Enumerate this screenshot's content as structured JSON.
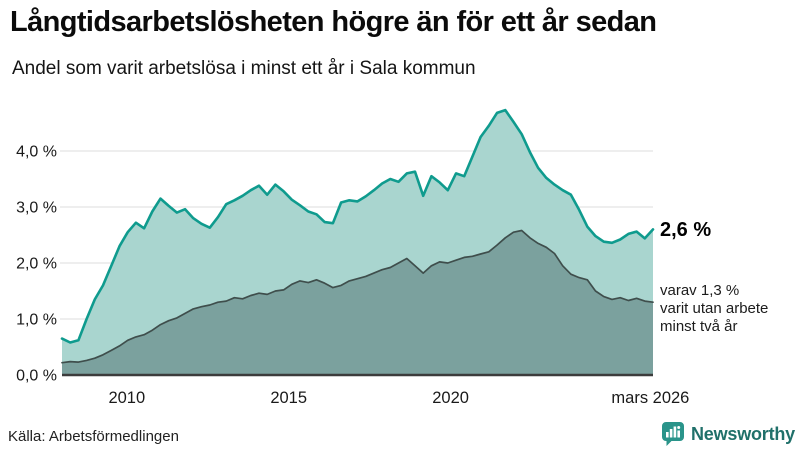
{
  "header": {
    "title": "Långtidsarbetslösheten högre än för ett år sedan",
    "subtitle": "Andel som varit arbetslösa i minst ett år i Sala kommun"
  },
  "annotations": {
    "end_value": "2,6 %",
    "sub_lines": [
      "varav 1,3 %",
      "varit utan arbete",
      "minst två år"
    ]
  },
  "footer": {
    "source": "Källa: Arbetsförmedlingen",
    "brand": "Newsworthy"
  },
  "colors": {
    "gridline": "#dcdcdc",
    "axis": "#3c3c3c",
    "tick_text": "#1a1a1a",
    "brand_icon": "#2a948a",
    "brand_text": "#20706a"
  },
  "chart_data": {
    "type": "area",
    "title": "Långtidsarbetslösheten högre än för ett år sedan",
    "subtitle": "Andel som varit arbetslösa i minst ett år i Sala kommun",
    "unit": "%",
    "x_range": {
      "start": 2008,
      "end": 2026.25
    },
    "ylim": [
      0,
      4.9
    ],
    "grid": true,
    "y_ticks": [
      {
        "label": "0,0 %",
        "value": 0
      },
      {
        "label": "1,0 %",
        "value": 1
      },
      {
        "label": "2,0 %",
        "value": 2
      },
      {
        "label": "3,0 %",
        "value": 3
      },
      {
        "label": "4,0 %",
        "value": 4
      }
    ],
    "x_ticks": [
      {
        "label": "2010",
        "year": 2010
      },
      {
        "label": "2015",
        "year": 2015
      },
      {
        "label": "2020",
        "year": 2020
      },
      {
        "label": "mars 2026",
        "year": 2026.17
      }
    ],
    "series": [
      {
        "name": "arbetslosa_minst_ett_ar",
        "end_label": "2,6 %",
        "fill": "#a9d5cf",
        "stroke": "#0f9b8e",
        "stroke_width": 2.6,
        "values": [
          0.65,
          0.58,
          0.62,
          1.0,
          1.35,
          1.6,
          1.95,
          2.3,
          2.55,
          2.72,
          2.62,
          2.92,
          3.15,
          3.02,
          2.9,
          2.96,
          2.8,
          2.7,
          2.63,
          2.82,
          3.05,
          3.12,
          3.2,
          3.3,
          3.38,
          3.22,
          3.4,
          3.28,
          3.13,
          3.03,
          2.92,
          2.87,
          2.73,
          2.71,
          3.08,
          3.12,
          3.1,
          3.19,
          3.3,
          3.42,
          3.5,
          3.45,
          3.6,
          3.63,
          3.2,
          3.55,
          3.44,
          3.3,
          3.6,
          3.55,
          3.9,
          4.25,
          4.45,
          4.68,
          4.73,
          4.52,
          4.3,
          3.98,
          3.7,
          3.52,
          3.4,
          3.3,
          3.22,
          2.95,
          2.65,
          2.48,
          2.38,
          2.36,
          2.42,
          2.52,
          2.56,
          2.44,
          2.6
        ]
      },
      {
        "name": "arbetslosa_minst_tva_ar",
        "end_label": "1,3 %",
        "fill": "#7ba19e",
        "stroke": "#3f4e4c",
        "stroke_width": 1.7,
        "values": [
          0.22,
          0.24,
          0.23,
          0.26,
          0.3,
          0.36,
          0.44,
          0.52,
          0.62,
          0.68,
          0.72,
          0.8,
          0.9,
          0.97,
          1.02,
          1.1,
          1.18,
          1.22,
          1.25,
          1.3,
          1.32,
          1.38,
          1.36,
          1.42,
          1.46,
          1.44,
          1.5,
          1.52,
          1.62,
          1.68,
          1.65,
          1.7,
          1.64,
          1.56,
          1.6,
          1.68,
          1.72,
          1.76,
          1.82,
          1.88,
          1.92,
          2.0,
          2.08,
          1.95,
          1.82,
          1.95,
          2.02,
          2.0,
          2.05,
          2.1,
          2.12,
          2.16,
          2.2,
          2.32,
          2.45,
          2.55,
          2.58,
          2.45,
          2.35,
          2.28,
          2.17,
          1.95,
          1.8,
          1.74,
          1.7,
          1.5,
          1.4,
          1.35,
          1.38,
          1.33,
          1.37,
          1.32,
          1.3
        ]
      }
    ]
  }
}
